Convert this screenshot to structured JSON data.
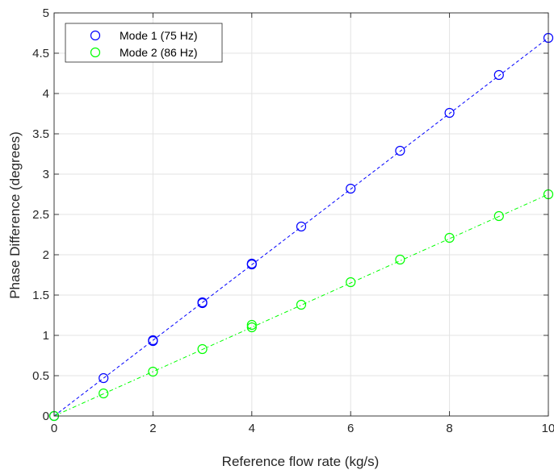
{
  "chart_data": {
    "type": "scatter",
    "xlabel": "Reference flow rate (kg/s)",
    "ylabel": "Phase Difference (degrees)",
    "xlim": [
      0,
      10
    ],
    "ylim": [
      0,
      5
    ],
    "x_ticks": [
      0,
      2,
      4,
      6,
      8,
      10
    ],
    "y_ticks": [
      0,
      0.5,
      1,
      1.5,
      2,
      2.5,
      3,
      3.5,
      4,
      4.5,
      5
    ],
    "grid": true,
    "legend_position": "top-left",
    "series": [
      {
        "name": "Mode 1 (75 Hz)",
        "color": "#0000ff",
        "marker": "circle-open",
        "fit_line": "dashed",
        "points": [
          [
            0,
            0
          ],
          [
            1,
            0.47
          ],
          [
            2,
            0.94
          ],
          [
            2,
            0.93
          ],
          [
            3,
            1.41
          ],
          [
            3,
            1.4
          ],
          [
            4,
            1.89
          ],
          [
            4,
            1.88
          ],
          [
            5,
            2.35
          ],
          [
            6,
            2.82
          ],
          [
            7,
            3.29
          ],
          [
            8,
            3.76
          ],
          [
            9,
            4.23
          ],
          [
            10,
            4.69
          ]
        ],
        "fit": [
          [
            0,
            0
          ],
          [
            10,
            4.69
          ]
        ]
      },
      {
        "name": "Mode 2 (86 Hz)",
        "color": "#00ff00",
        "marker": "circle-open",
        "fit_line": "dash-dot",
        "points": [
          [
            0,
            0
          ],
          [
            1,
            0.28
          ],
          [
            2,
            0.55
          ],
          [
            3,
            0.83
          ],
          [
            4,
            1.13
          ],
          [
            4,
            1.1
          ],
          [
            5,
            1.38
          ],
          [
            6,
            1.66
          ],
          [
            7,
            1.94
          ],
          [
            8,
            2.21
          ],
          [
            9,
            2.48
          ],
          [
            10,
            2.75
          ]
        ],
        "fit": [
          [
            0,
            0
          ],
          [
            10,
            2.75
          ]
        ]
      }
    ]
  }
}
